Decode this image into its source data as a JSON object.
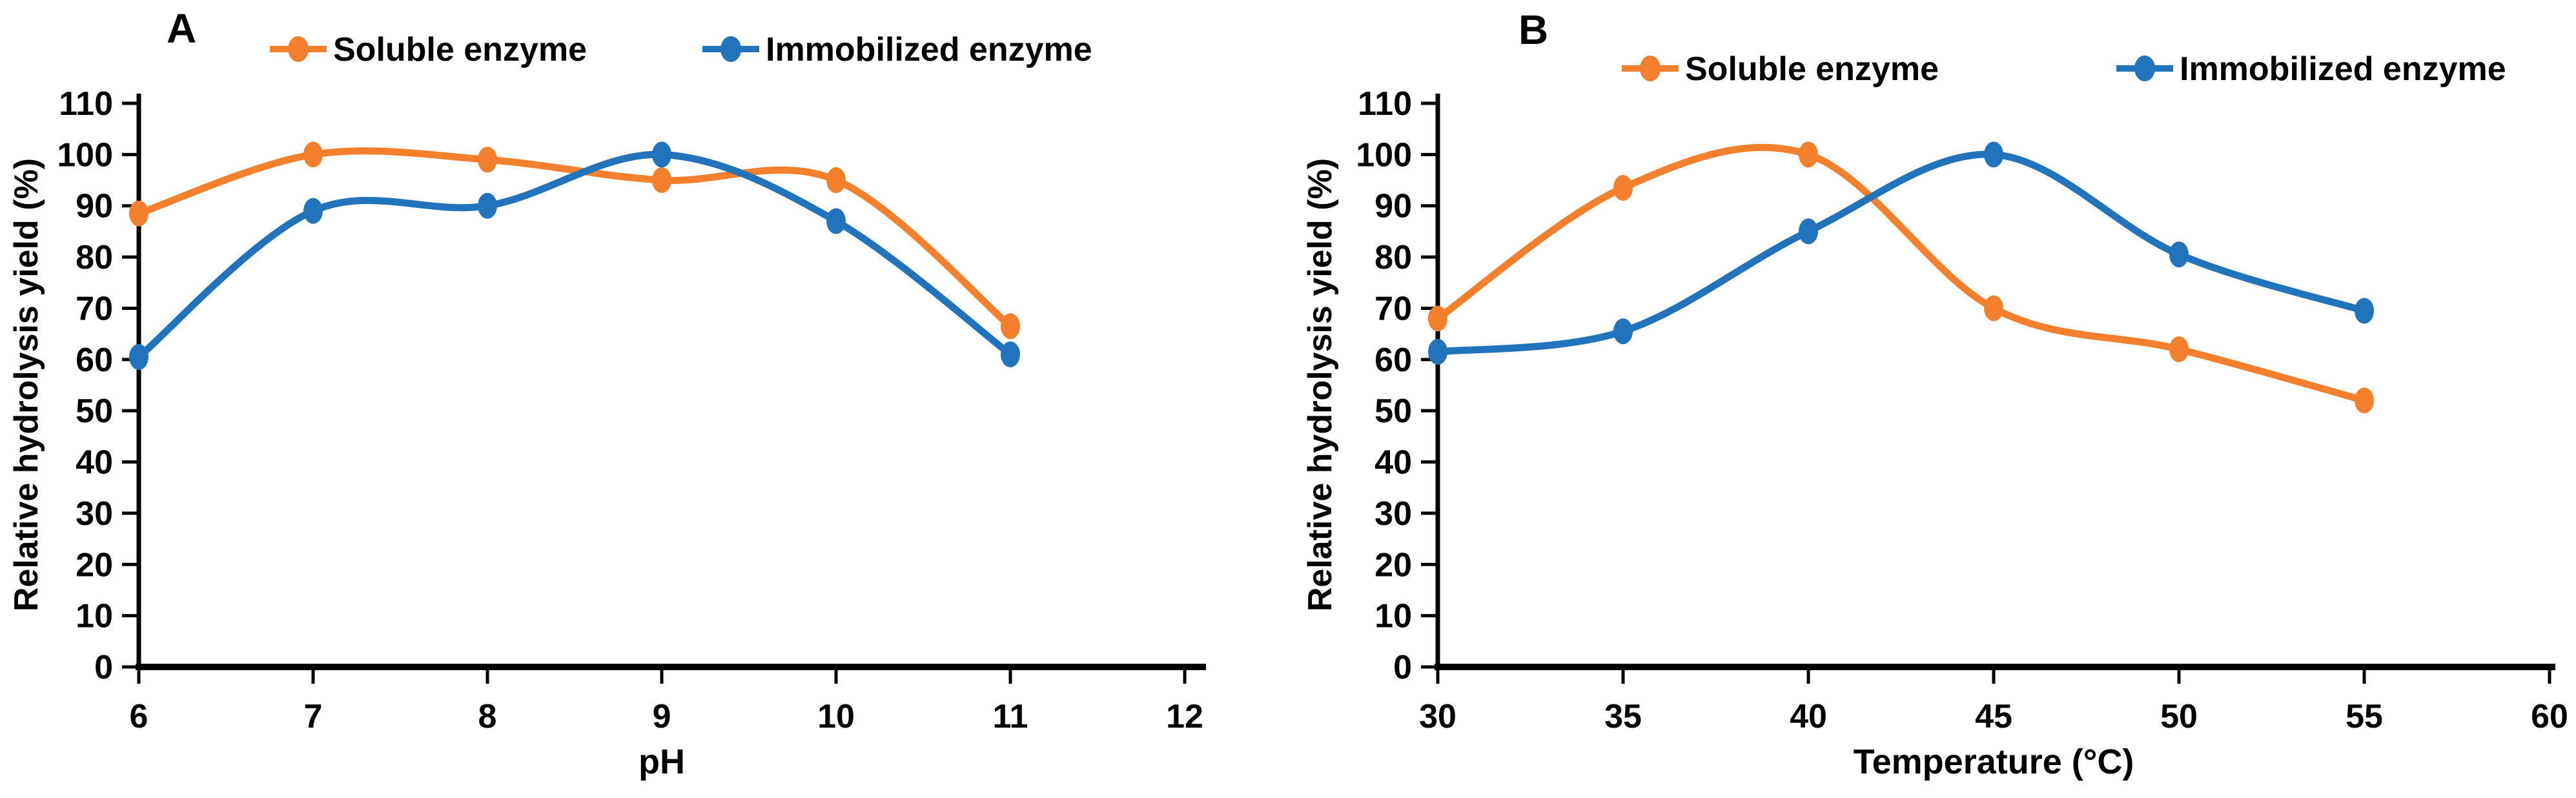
{
  "figure": {
    "background": "#ffffff",
    "text_color": "#000000",
    "legend_labels": [
      "Soluble enzyme",
      "Immobilized enzyme"
    ],
    "series_colors": {
      "soluble": "#F4802E",
      "immobilized": "#2173BB"
    }
  },
  "chart_data": [
    {
      "type": "line",
      "panel_label": "A",
      "xlabel": "pH",
      "ylabel": "Relative hydrolysis yield (%)",
      "x": [
        6,
        7,
        8,
        9,
        10,
        11
      ],
      "xlim": [
        6,
        12
      ],
      "xticks": [
        6,
        7,
        8,
        9,
        10,
        11,
        12
      ],
      "ylim": [
        0,
        110
      ],
      "yticks": [
        0,
        10,
        20,
        30,
        40,
        50,
        60,
        70,
        80,
        90,
        100,
        110
      ],
      "grid": false,
      "legend_position": "top",
      "line_style": "smooth",
      "marker": "circle",
      "series": [
        {
          "name": "Soluble enzyme",
          "color": "#F4802E",
          "values": [
            88.5,
            100,
            99,
            95,
            95,
            66.5
          ]
        },
        {
          "name": "Immobilized enzyme",
          "color": "#2173BB",
          "values": [
            60.5,
            89,
            90,
            100,
            87,
            61
          ]
        }
      ]
    },
    {
      "type": "line",
      "panel_label": "B",
      "xlabel": "Temperature  (°C)",
      "ylabel": "Relative hydrolysis yield (%)",
      "x": [
        30,
        35,
        40,
        45,
        50,
        55
      ],
      "xlim": [
        30,
        60
      ],
      "xticks": [
        30,
        35,
        40,
        45,
        50,
        55,
        60
      ],
      "ylim": [
        0,
        110
      ],
      "yticks": [
        0,
        10,
        20,
        30,
        40,
        50,
        60,
        70,
        80,
        90,
        100,
        110
      ],
      "grid": false,
      "legend_position": "top",
      "line_style": "smooth",
      "marker": "circle",
      "series": [
        {
          "name": "Soluble enzyme",
          "color": "#F4802E",
          "values": [
            68,
            93.5,
            100,
            70,
            62,
            52
          ]
        },
        {
          "name": "Immobilized enzyme",
          "color": "#2173BB",
          "values": [
            61.5,
            65.5,
            85,
            100,
            80.5,
            69.5
          ]
        }
      ]
    }
  ]
}
